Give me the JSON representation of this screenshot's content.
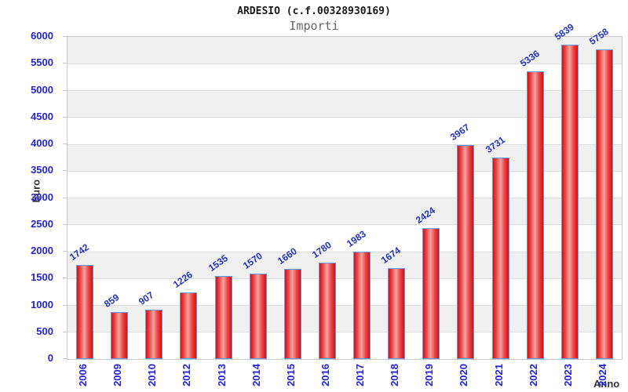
{
  "header": {
    "title": "ARDESIO (c.f.00328930169)",
    "subtitle": "Importi"
  },
  "chart_data": {
    "type": "bar",
    "title": "ARDESIO (c.f.00328930169)",
    "subtitle": "Importi",
    "categories": [
      "2006",
      "2009",
      "2010",
      "2012",
      "2013",
      "2014",
      "2015",
      "2016",
      "2017",
      "2018",
      "2019",
      "2020",
      "2021",
      "2022",
      "2023",
      "2024"
    ],
    "values": [
      1742,
      859,
      907,
      1226,
      1535,
      1570,
      1660,
      1780,
      1983,
      1674,
      2424,
      3967,
      3731,
      5336,
      5839,
      5758
    ],
    "xlabel": "Anno",
    "ylabel": "Euro",
    "ylim": [
      0,
      6000
    ],
    "ytick_step": 500,
    "yticks": [
      0,
      500,
      1000,
      1500,
      2000,
      2500,
      3000,
      3500,
      4000,
      4500,
      5000,
      5500,
      6000
    ],
    "grid": "horizontal-bands",
    "legend_position": "none",
    "colors": {
      "bar_fill": "#dd0c0c",
      "bar_fill_highlight": "#f7a3a3",
      "bar_border": "#5a9fe8",
      "axis_label_blue": "#2323d2",
      "value_label_blue": "#2233b8",
      "band_gray": "#f0f0f0",
      "axis_title_gray": "#333333",
      "subtitle_gray": "#666666"
    }
  }
}
